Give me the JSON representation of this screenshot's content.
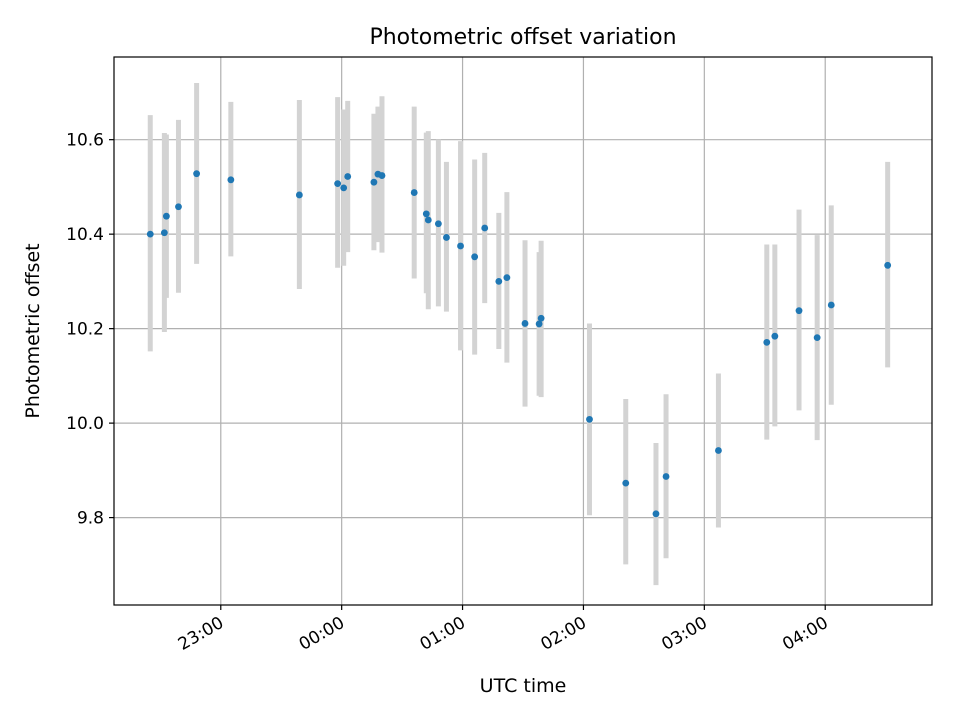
{
  "chart_data": {
    "type": "scatter",
    "title": "Photometric offset variation",
    "xlabel": "UTC time",
    "ylabel": "Photometric offset",
    "x_axis_type": "time",
    "xlim": [
      "22:07",
      "04:53"
    ],
    "ylim": [
      9.615,
      10.775
    ],
    "grid": true,
    "xticks": [
      "23:00",
      "00:00",
      "01:00",
      "02:00",
      "03:00",
      "04:00"
    ],
    "yticks": [
      "9.8",
      "10.0",
      "10.2",
      "10.4",
      "10.6"
    ],
    "series": [
      {
        "marker_color": "#1f77b4",
        "errorbar_color": "#d3d3d3",
        "points": [
          {
            "x": "22:25",
            "y": 10.4,
            "lo": 10.152,
            "hi": 10.652
          },
          {
            "x": "22:32",
            "y": 10.403,
            "lo": 10.193,
            "hi": 10.614
          },
          {
            "x": "22:33",
            "y": 10.438,
            "lo": 10.265,
            "hi": 10.611
          },
          {
            "x": "22:39",
            "y": 10.458,
            "lo": 10.276,
            "hi": 10.642
          },
          {
            "x": "22:48",
            "y": 10.528,
            "lo": 10.337,
            "hi": 10.72
          },
          {
            "x": "23:05",
            "y": 10.515,
            "lo": 10.353,
            "hi": 10.68
          },
          {
            "x": "23:39",
            "y": 10.483,
            "lo": 10.284,
            "hi": 10.684
          },
          {
            "x": "23:58",
            "y": 10.507,
            "lo": 10.329,
            "hi": 10.69
          },
          {
            "x": "00:01",
            "y": 10.498,
            "lo": 10.333,
            "hi": 10.664
          },
          {
            "x": "00:03",
            "y": 10.522,
            "lo": 10.362,
            "hi": 10.682
          },
          {
            "x": "00:16",
            "y": 10.51,
            "lo": 10.366,
            "hi": 10.655
          },
          {
            "x": "00:18",
            "y": 10.527,
            "lo": 10.383,
            "hi": 10.67
          },
          {
            "x": "00:20",
            "y": 10.524,
            "lo": 10.361,
            "hi": 10.692
          },
          {
            "x": "00:36",
            "y": 10.488,
            "lo": 10.306,
            "hi": 10.67
          },
          {
            "x": "00:42",
            "y": 10.443,
            "lo": 10.275,
            "hi": 10.615
          },
          {
            "x": "00:43",
            "y": 10.43,
            "lo": 10.241,
            "hi": 10.618
          },
          {
            "x": "00:48",
            "y": 10.422,
            "lo": 10.247,
            "hi": 10.6
          },
          {
            "x": "00:52",
            "y": 10.393,
            "lo": 10.236,
            "hi": 10.553
          },
          {
            "x": "00:59",
            "y": 10.375,
            "lo": 10.154,
            "hi": 10.597
          },
          {
            "x": "01:06",
            "y": 10.352,
            "lo": 10.145,
            "hi": 10.558
          },
          {
            "x": "01:11",
            "y": 10.413,
            "lo": 10.254,
            "hi": 10.572
          },
          {
            "x": "01:18",
            "y": 10.3,
            "lo": 10.157,
            "hi": 10.445
          },
          {
            "x": "01:22",
            "y": 10.308,
            "lo": 10.128,
            "hi": 10.489
          },
          {
            "x": "01:31",
            "y": 10.211,
            "lo": 10.035,
            "hi": 10.387
          },
          {
            "x": "01:38",
            "y": 10.21,
            "lo": 10.058,
            "hi": 10.362
          },
          {
            "x": "01:39",
            "y": 10.222,
            "lo": 10.055,
            "hi": 10.386
          },
          {
            "x": "02:03",
            "y": 10.008,
            "lo": 9.805,
            "hi": 10.211
          },
          {
            "x": "02:21",
            "y": 9.873,
            "lo": 9.701,
            "hi": 10.051
          },
          {
            "x": "02:36",
            "y": 9.808,
            "lo": 9.657,
            "hi": 9.958
          },
          {
            "x": "02:41",
            "y": 9.887,
            "lo": 9.714,
            "hi": 10.061
          },
          {
            "x": "03:07",
            "y": 9.942,
            "lo": 9.779,
            "hi": 10.105
          },
          {
            "x": "03:31",
            "y": 10.171,
            "lo": 9.965,
            "hi": 10.378
          },
          {
            "x": "03:35",
            "y": 10.184,
            "lo": 9.993,
            "hi": 10.378
          },
          {
            "x": "03:47",
            "y": 10.238,
            "lo": 10.027,
            "hi": 10.452
          },
          {
            "x": "03:56",
            "y": 10.181,
            "lo": 9.964,
            "hi": 10.398
          },
          {
            "x": "04:03",
            "y": 10.25,
            "lo": 10.039,
            "hi": 10.461
          },
          {
            "x": "04:31",
            "y": 10.334,
            "lo": 10.118,
            "hi": 10.553
          }
        ]
      }
    ]
  }
}
